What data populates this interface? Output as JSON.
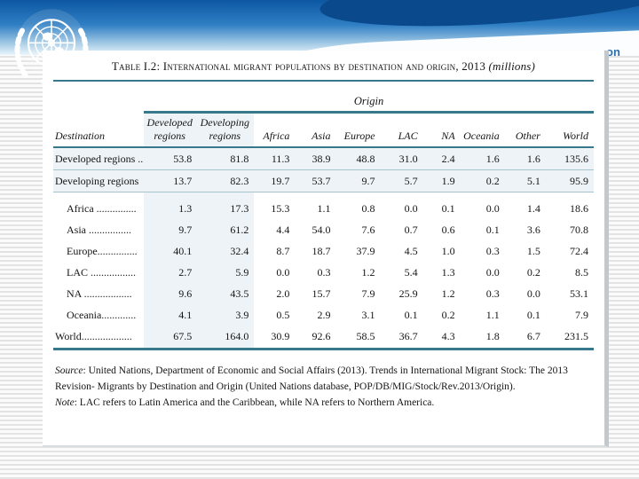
{
  "header": {
    "partial_title": "on"
  },
  "panel": {
    "title": "Table I.2: International migrant populations by destination and origin, 2013",
    "title_suffix": "(millions)",
    "origin_label": "Origin",
    "destination_label": "Destination",
    "source_label": "Source",
    "source_text": ": United Nations, Department of Economic and Social Affairs (2013). Trends in International Migrant Stock: The 2013 Revision- Migrants by Destination and Origin (United Nations database, POP/DB/MIG/Stock/Rev.2013/Origin).",
    "note_label": "Note",
    "note_text": ": LAC refers to Latin America and the Caribbean, while NA refers to Northern America."
  },
  "chart_data": {
    "type": "table",
    "title": "Table I.2: International migrant populations by destination and origin, 2013 (millions)",
    "columns": [
      "Developed regions",
      "Developing regions",
      "Africa",
      "Asia",
      "Europe",
      "LAC",
      "NA",
      "Oceania",
      "Other",
      "World"
    ],
    "rows": [
      {
        "label": "Developed regions ..",
        "shaded": true,
        "values": [
          "53.8",
          "81.8",
          "11.3",
          "38.9",
          "48.8",
          "31.0",
          "2.4",
          "1.6",
          "1.6",
          "135.6"
        ]
      },
      {
        "label": "Developing regions",
        "shaded": true,
        "values": [
          "13.7",
          "82.3",
          "19.7",
          "53.7",
          "9.7",
          "5.7",
          "1.9",
          "0.2",
          "5.1",
          "95.9"
        ]
      },
      {
        "label": "Africa ...............",
        "indent": true,
        "gap": true,
        "values": [
          "1.3",
          "17.3",
          "15.3",
          "1.1",
          "0.8",
          "0.0",
          "0.1",
          "0.0",
          "1.4",
          "18.6"
        ]
      },
      {
        "label": "Asia ................",
        "indent": true,
        "values": [
          "9.7",
          "61.2",
          "4.4",
          "54.0",
          "7.6",
          "0.7",
          "0.6",
          "0.1",
          "3.6",
          "70.8"
        ]
      },
      {
        "label": "Europe...............",
        "indent": true,
        "values": [
          "40.1",
          "32.4",
          "8.7",
          "18.7",
          "37.9",
          "4.5",
          "1.0",
          "0.3",
          "1.5",
          "72.4"
        ]
      },
      {
        "label": "LAC .................",
        "indent": true,
        "values": [
          "2.7",
          "5.9",
          "0.0",
          "0.3",
          "1.2",
          "5.4",
          "1.3",
          "0.0",
          "0.2",
          "8.5"
        ]
      },
      {
        "label": "NA ..................",
        "indent": true,
        "values": [
          "9.6",
          "43.5",
          "2.0",
          "15.7",
          "7.9",
          "25.9",
          "1.2",
          "0.3",
          "0.0",
          "53.1"
        ]
      },
      {
        "label": "Oceania.............",
        "indent": true,
        "values": [
          "4.1",
          "3.9",
          "0.5",
          "2.9",
          "3.1",
          "0.1",
          "0.2",
          "1.1",
          "0.1",
          "7.9"
        ]
      },
      {
        "label": "World...................",
        "world": true,
        "values": [
          "67.5",
          "164.0",
          "30.9",
          "92.6",
          "58.5",
          "36.7",
          "4.3",
          "1.8",
          "6.7",
          "231.5"
        ]
      }
    ]
  },
  "colors": {
    "rule_teal": "#37798a",
    "shade_blue": "#edf3f7",
    "banner_blue_top": "#0d57a2",
    "partial_title_blue": "#2a6db0"
  }
}
